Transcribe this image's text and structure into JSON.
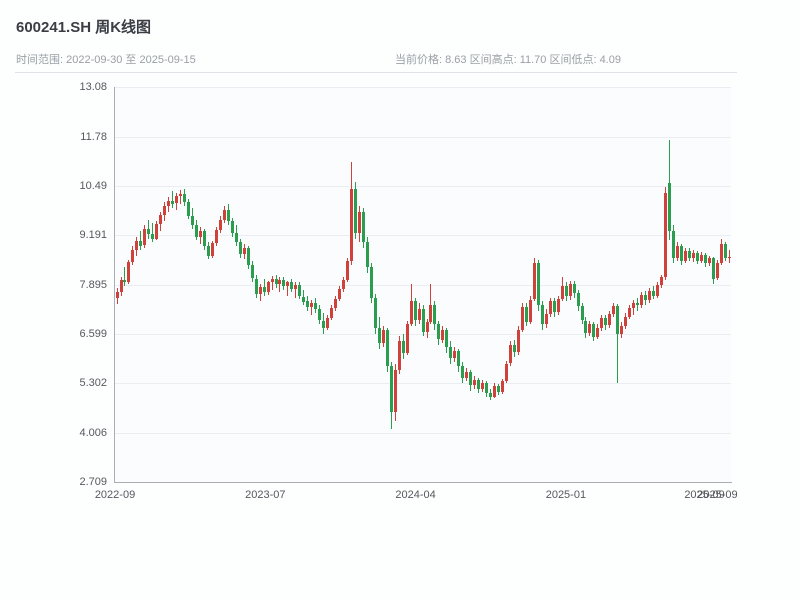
{
  "header": {
    "title": "600241.SH 周K线图",
    "subtitle_left": "时间范围: 2022-09-30 至 2025-09-15",
    "subtitle_right": "当前价格: 8.63  区间高点: 11.70  区间低点: 4.09"
  },
  "chart_data": {
    "type": "candlestick",
    "symbol": "600241.SH",
    "interval": "weekly",
    "title": "600241.SH 周K线图",
    "date_range": {
      "start": "2022-09-30",
      "end": "2025-09-15"
    },
    "current_price": 8.63,
    "range_high": 11.7,
    "range_low": 4.09,
    "grid": true,
    "y_min": 2.709,
    "y_max": 13.08,
    "y_ticks": [
      "13.08",
      "11.78",
      "10.49",
      "9.191",
      "7.895",
      "6.599",
      "5.302",
      "4.006",
      "2.709"
    ],
    "x_ticks": [
      {
        "label": "2022-09",
        "pos": 0.0
      },
      {
        "label": "2023-07",
        "pos": 0.244
      },
      {
        "label": "2024-04",
        "pos": 0.488
      },
      {
        "label": "2025-01",
        "pos": 0.732
      },
      {
        "label": "2025-09",
        "pos": 0.957
      },
      {
        "label": "2025-09",
        "pos": 0.978
      }
    ],
    "colors": {
      "up": "#cf423c",
      "down": "#2a9d4e"
    },
    "candles": [
      [
        7.55,
        7.8,
        7.38,
        7.7
      ],
      [
        7.7,
        8.1,
        7.6,
        8.02
      ],
      [
        8.02,
        8.35,
        7.85,
        7.95
      ],
      [
        7.95,
        8.55,
        7.9,
        8.48
      ],
      [
        8.48,
        8.9,
        8.4,
        8.8
      ],
      [
        8.8,
        9.15,
        8.65,
        9.05
      ],
      [
        9.05,
        9.3,
        8.8,
        8.92
      ],
      [
        8.92,
        9.45,
        8.85,
        9.35
      ],
      [
        9.35,
        9.6,
        9.1,
        9.22
      ],
      [
        9.22,
        9.5,
        9.0,
        9.1
      ],
      [
        9.1,
        9.55,
        9.05,
        9.48
      ],
      [
        9.48,
        9.8,
        9.3,
        9.72
      ],
      [
        9.72,
        10.05,
        9.55,
        9.95
      ],
      [
        9.95,
        10.2,
        9.8,
        10.1
      ],
      [
        10.1,
        10.35,
        9.9,
        10.02
      ],
      [
        10.02,
        10.3,
        9.85,
        10.22
      ],
      [
        10.22,
        10.38,
        10.0,
        10.28
      ],
      [
        10.28,
        10.4,
        9.95,
        10.05
      ],
      [
        10.05,
        10.15,
        9.6,
        9.7
      ],
      [
        9.7,
        9.9,
        9.35,
        9.45
      ],
      [
        9.45,
        9.6,
        9.05,
        9.15
      ],
      [
        9.15,
        9.4,
        8.95,
        9.3
      ],
      [
        9.3,
        9.35,
        8.8,
        8.9
      ],
      [
        8.9,
        9.0,
        8.55,
        8.65
      ],
      [
        8.65,
        9.05,
        8.6,
        8.98
      ],
      [
        8.98,
        9.4,
        8.9,
        9.32
      ],
      [
        9.32,
        9.7,
        9.25,
        9.6
      ],
      [
        9.6,
        9.95,
        9.5,
        9.85
      ],
      [
        9.85,
        10.0,
        9.45,
        9.55
      ],
      [
        9.55,
        9.65,
        9.15,
        9.25
      ],
      [
        9.25,
        9.45,
        8.9,
        9.0
      ],
      [
        9.0,
        9.1,
        8.6,
        8.7
      ],
      [
        8.7,
        8.95,
        8.55,
        8.85
      ],
      [
        8.85,
        8.9,
        8.3,
        8.4
      ],
      [
        8.4,
        8.5,
        7.95,
        8.05
      ],
      [
        8.05,
        8.15,
        7.55,
        7.65
      ],
      [
        7.65,
        7.9,
        7.45,
        7.82
      ],
      [
        7.82,
        8.05,
        7.6,
        7.7
      ],
      [
        7.7,
        8.0,
        7.62,
        7.95
      ],
      [
        7.95,
        8.12,
        7.75,
        8.05
      ],
      [
        8.05,
        8.15,
        7.8,
        7.9
      ],
      [
        7.9,
        8.1,
        7.7,
        8.02
      ],
      [
        8.02,
        8.1,
        7.75,
        7.85
      ],
      [
        7.85,
        8.0,
        7.6,
        7.95
      ],
      [
        7.95,
        8.05,
        7.7,
        7.78
      ],
      [
        7.78,
        7.95,
        7.55,
        7.88
      ],
      [
        7.88,
        7.95,
        7.5,
        7.58
      ],
      [
        7.58,
        7.75,
        7.35,
        7.45
      ],
      [
        7.45,
        7.6,
        7.2,
        7.3
      ],
      [
        7.3,
        7.5,
        7.1,
        7.42
      ],
      [
        7.42,
        7.55,
        7.15,
        7.25
      ],
      [
        7.25,
        7.35,
        6.85,
        6.95
      ],
      [
        6.95,
        7.15,
        6.6,
        6.75
      ],
      [
        6.75,
        7.1,
        6.7,
        7.02
      ],
      [
        7.02,
        7.35,
        6.95,
        7.28
      ],
      [
        7.28,
        7.6,
        7.2,
        7.52
      ],
      [
        7.52,
        7.85,
        7.45,
        7.78
      ],
      [
        7.78,
        8.1,
        7.7,
        8.02
      ],
      [
        8.02,
        8.6,
        7.95,
        8.5
      ],
      [
        8.5,
        11.1,
        8.4,
        10.4
      ],
      [
        10.4,
        10.6,
        9.1,
        9.25
      ],
      [
        9.25,
        9.95,
        9.0,
        9.8
      ],
      [
        9.8,
        9.9,
        8.85,
        9.0
      ],
      [
        9.0,
        9.15,
        8.2,
        8.35
      ],
      [
        8.35,
        8.45,
        7.4,
        7.55
      ],
      [
        7.55,
        7.65,
        6.6,
        6.75
      ],
      [
        6.75,
        7.05,
        6.2,
        6.35
      ],
      [
        6.35,
        6.8,
        6.25,
        6.7
      ],
      [
        6.7,
        6.75,
        5.6,
        5.75
      ],
      [
        5.75,
        5.85,
        4.09,
        4.55
      ],
      [
        4.55,
        5.8,
        4.3,
        5.65
      ],
      [
        5.65,
        6.55,
        5.55,
        6.4
      ],
      [
        6.4,
        6.6,
        5.95,
        6.1
      ],
      [
        6.1,
        6.95,
        6.05,
        6.85
      ],
      [
        6.85,
        7.9,
        6.8,
        7.45
      ],
      [
        7.45,
        7.55,
        6.8,
        6.95
      ],
      [
        6.95,
        7.4,
        6.85,
        7.25
      ],
      [
        7.25,
        7.35,
        6.55,
        6.65
      ],
      [
        6.65,
        7.0,
        6.5,
        6.9
      ],
      [
        6.9,
        7.9,
        6.85,
        7.35
      ],
      [
        7.35,
        7.45,
        6.7,
        6.85
      ],
      [
        6.85,
        6.95,
        6.3,
        6.45
      ],
      [
        6.45,
        6.8,
        6.35,
        6.7
      ],
      [
        6.7,
        6.75,
        6.1,
        6.25
      ],
      [
        6.25,
        6.4,
        5.8,
        5.95
      ],
      [
        5.95,
        6.25,
        5.85,
        6.15
      ],
      [
        6.15,
        6.2,
        5.6,
        5.75
      ],
      [
        5.75,
        5.85,
        5.3,
        5.45
      ],
      [
        5.45,
        5.7,
        5.35,
        5.6
      ],
      [
        5.6,
        5.65,
        5.1,
        5.25
      ],
      [
        5.25,
        5.5,
        5.15,
        5.4
      ],
      [
        5.4,
        5.45,
        5.05,
        5.15
      ],
      [
        5.15,
        5.4,
        5.08,
        5.32
      ],
      [
        5.32,
        5.35,
        4.95,
        5.05
      ],
      [
        5.05,
        5.15,
        4.85,
        4.95
      ],
      [
        4.95,
        5.3,
        4.9,
        5.22
      ],
      [
        5.22,
        5.28,
        4.98,
        5.08
      ],
      [
        5.08,
        5.42,
        5.02,
        5.35
      ],
      [
        5.35,
        5.9,
        5.3,
        5.82
      ],
      [
        5.82,
        6.4,
        5.75,
        6.3
      ],
      [
        6.3,
        6.45,
        6.0,
        6.12
      ],
      [
        6.12,
        6.8,
        6.05,
        6.7
      ],
      [
        6.7,
        7.4,
        6.65,
        7.3
      ],
      [
        7.3,
        7.4,
        6.8,
        6.92
      ],
      [
        6.92,
        7.6,
        6.85,
        7.5
      ],
      [
        7.5,
        8.6,
        7.45,
        8.45
      ],
      [
        8.45,
        8.55,
        7.2,
        7.35
      ],
      [
        7.35,
        7.45,
        6.7,
        6.85
      ],
      [
        6.85,
        7.25,
        6.75,
        7.12
      ],
      [
        7.12,
        7.55,
        7.05,
        7.45
      ],
      [
        7.45,
        7.55,
        7.05,
        7.18
      ],
      [
        7.18,
        7.6,
        7.1,
        7.52
      ],
      [
        7.52,
        8.1,
        7.45,
        7.85
      ],
      [
        7.85,
        7.95,
        7.45,
        7.58
      ],
      [
        7.58,
        8.0,
        7.5,
        7.92
      ],
      [
        7.92,
        8.0,
        7.55,
        7.68
      ],
      [
        7.68,
        7.75,
        7.2,
        7.32
      ],
      [
        7.32,
        7.42,
        6.85,
        6.95
      ],
      [
        6.95,
        7.05,
        6.5,
        6.62
      ],
      [
        6.62,
        6.95,
        6.55,
        6.85
      ],
      [
        6.85,
        6.9,
        6.4,
        6.52
      ],
      [
        6.52,
        6.85,
        6.45,
        6.75
      ],
      [
        6.75,
        7.1,
        6.68,
        7.02
      ],
      [
        7.02,
        7.1,
        6.7,
        6.82
      ],
      [
        6.82,
        7.2,
        6.75,
        7.12
      ],
      [
        7.12,
        7.4,
        7.05,
        7.32
      ],
      [
        7.32,
        7.38,
        5.3,
        6.6
      ],
      [
        6.6,
        6.9,
        6.5,
        6.8
      ],
      [
        6.8,
        7.15,
        6.72,
        7.05
      ],
      [
        7.05,
        7.35,
        6.98,
        7.28
      ],
      [
        7.28,
        7.5,
        7.1,
        7.42
      ],
      [
        7.42,
        7.55,
        7.2,
        7.35
      ],
      [
        7.35,
        7.7,
        7.28,
        7.62
      ],
      [
        7.62,
        7.72,
        7.35,
        7.48
      ],
      [
        7.48,
        7.8,
        7.4,
        7.72
      ],
      [
        7.72,
        7.85,
        7.5,
        7.6
      ],
      [
        7.6,
        7.95,
        7.55,
        7.88
      ],
      [
        7.88,
        8.15,
        7.8,
        8.08
      ],
      [
        8.08,
        10.45,
        8.0,
        10.3
      ],
      [
        10.55,
        11.7,
        9.05,
        9.3
      ],
      [
        9.3,
        9.45,
        8.45,
        8.6
      ],
      [
        8.6,
        9.0,
        8.5,
        8.9
      ],
      [
        8.9,
        8.95,
        8.4,
        8.52
      ],
      [
        8.52,
        8.85,
        8.45,
        8.78
      ],
      [
        8.78,
        8.85,
        8.5,
        8.6
      ],
      [
        8.6,
        8.8,
        8.48,
        8.72
      ],
      [
        8.72,
        8.78,
        8.42,
        8.52
      ],
      [
        8.52,
        8.75,
        8.45,
        8.68
      ],
      [
        8.68,
        8.72,
        8.35,
        8.45
      ],
      [
        8.45,
        8.65,
        8.38,
        8.58
      ],
      [
        8.58,
        8.62,
        7.9,
        8.05
      ],
      [
        8.05,
        8.55,
        8.0,
        8.45
      ],
      [
        8.45,
        9.1,
        8.4,
        8.95
      ],
      [
        8.95,
        9.0,
        8.5,
        8.58
      ],
      [
        8.58,
        8.8,
        8.45,
        8.63
      ]
    ]
  }
}
